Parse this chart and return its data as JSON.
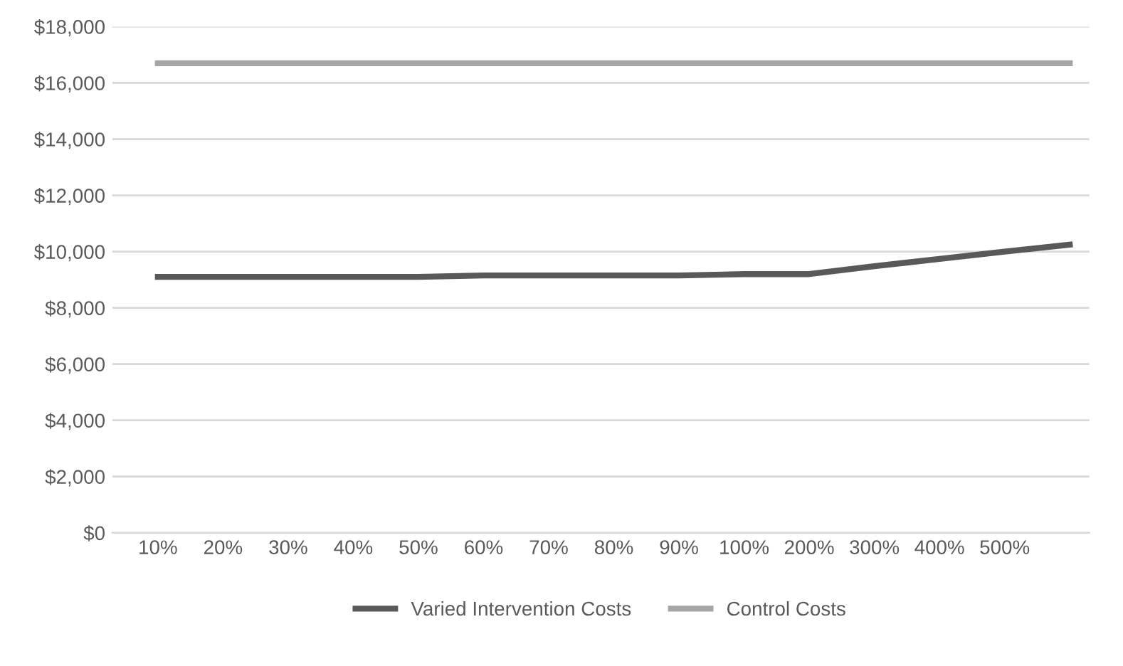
{
  "chart_data": {
    "type": "line",
    "categories": [
      "10%",
      "20%",
      "30%",
      "40%",
      "50%",
      "60%",
      "70%",
      "80%",
      "90%",
      "100%",
      "200%",
      "300%",
      "400%",
      "500%",
      null
    ],
    "series": [
      {
        "name": "Varied Intervention Costs",
        "color": "#595959",
        "values": [
          9100,
          9100,
          9100,
          9100,
          9100,
          9150,
          9150,
          9150,
          9150,
          9200,
          9200,
          9480,
          9740,
          10000,
          10250
        ]
      },
      {
        "name": "Control Costs",
        "color": "#a5a5a5",
        "values": [
          16700,
          16700,
          16700,
          16700,
          16700,
          16700,
          16700,
          16700,
          16700,
          16700,
          16700,
          16700,
          16700,
          16700,
          16700
        ]
      }
    ],
    "ylim": [
      0,
      18000
    ],
    "yticks": [
      {
        "value": 0,
        "label": "$0"
      },
      {
        "value": 2000,
        "label": "$2,000"
      },
      {
        "value": 4000,
        "label": "$4,000"
      },
      {
        "value": 6000,
        "label": "$6,000"
      },
      {
        "value": 8000,
        "label": "$8,000"
      },
      {
        "value": 10000,
        "label": "$10,000"
      },
      {
        "value": 12000,
        "label": "$12,000"
      },
      {
        "value": 14000,
        "label": "$14,000"
      },
      {
        "value": 16000,
        "label": "$16,000"
      },
      {
        "value": 18000,
        "label": "$18,000"
      }
    ],
    "grid": "y",
    "legend": "bottom",
    "marker": "none",
    "line_style": "solid"
  }
}
